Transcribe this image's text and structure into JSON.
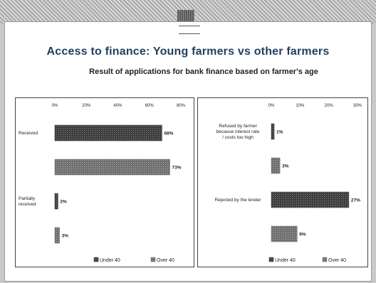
{
  "title": "Access to finance: Young farmers vs other farmers",
  "subtitle": "Result of applications for bank finance based on farmer's age",
  "colors": {
    "under40": "#4a4a4a",
    "over40": "#7d7d7d",
    "title": "#1f3f5f"
  },
  "chart_data": [
    {
      "type": "bar",
      "orientation": "horizontal",
      "title": "",
      "tick_labels": [
        "0%",
        "20%",
        "40%",
        "60%",
        "80%"
      ],
      "xlim": [
        0,
        80
      ],
      "categories": [
        "Received",
        "Partially received"
      ],
      "series": [
        {
          "name": "Under 40",
          "values": [
            68,
            2
          ],
          "labels": [
            "68%",
            "2%"
          ]
        },
        {
          "name": "Over 40",
          "values": [
            73,
            3
          ],
          "labels": [
            "73%",
            "3%"
          ]
        }
      ],
      "legend": "bottom"
    },
    {
      "type": "bar",
      "orientation": "horizontal",
      "title": "",
      "tick_labels": [
        "0%",
        "10%",
        "20%",
        "30%"
      ],
      "xlim": [
        0,
        30
      ],
      "categories": [
        "Refused by farmer because interest rate / costs too high",
        "Rejected by the lender"
      ],
      "series": [
        {
          "name": "Under 40",
          "values": [
            1,
            27
          ],
          "labels": [
            "1%",
            "27%"
          ]
        },
        {
          "name": "Over 40",
          "values": [
            3,
            9
          ],
          "labels": [
            "3%",
            "9%"
          ]
        }
      ],
      "legend": "bottom"
    }
  ]
}
